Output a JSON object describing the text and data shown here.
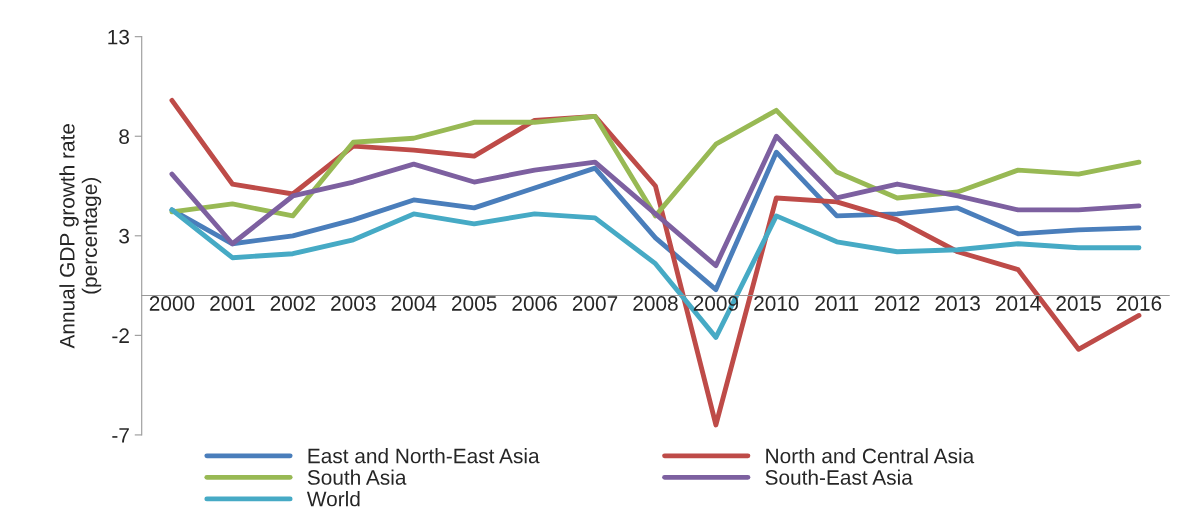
{
  "chart_data": {
    "type": "line",
    "ylabel": "Annual GDP growth rate\n(percentage)",
    "categories": [
      "2000",
      "2001",
      "2002",
      "2003",
      "2004",
      "2005",
      "2006",
      "2007",
      "2008",
      "2009",
      "2010",
      "2011",
      "2012",
      "2013",
      "2014",
      "2015",
      "2016"
    ],
    "series": [
      {
        "name": "East and North-East Asia",
        "color": "#4a7ebb",
        "values": [
          4.3,
          2.6,
          3.0,
          3.8,
          4.8,
          4.4,
          5.4,
          6.4,
          2.9,
          0.3,
          7.2,
          4.0,
          4.1,
          4.4,
          3.1,
          3.3,
          3.4
        ]
      },
      {
        "name": "North and Central Asia",
        "color": "#be4b48",
        "values": [
          9.8,
          5.6,
          5.1,
          7.5,
          7.3,
          7.0,
          8.8,
          9.0,
          5.5,
          -6.5,
          4.9,
          4.7,
          3.8,
          2.2,
          1.3,
          -2.7,
          -1.0
        ]
      },
      {
        "name": "South Asia",
        "color": "#98b954",
        "values": [
          4.2,
          4.6,
          4.0,
          7.7,
          7.9,
          8.7,
          8.7,
          9.0,
          4.0,
          7.6,
          9.3,
          6.2,
          4.9,
          5.2,
          6.3,
          6.1,
          6.7
        ]
      },
      {
        "name": "South-East Asia",
        "color": "#7d60a0",
        "values": [
          6.1,
          2.6,
          5.0,
          5.7,
          6.6,
          5.7,
          6.3,
          6.7,
          4.1,
          1.5,
          8.0,
          4.9,
          5.6,
          5.0,
          4.3,
          4.3,
          4.5
        ]
      },
      {
        "name": "World",
        "color": "#46aac5",
        "values": [
          4.3,
          1.9,
          2.1,
          2.8,
          4.1,
          3.6,
          4.1,
          3.9,
          1.6,
          -2.1,
          4.0,
          2.7,
          2.2,
          2.3,
          2.6,
          2.4,
          2.4
        ]
      }
    ],
    "ylim": [
      -7,
      13
    ],
    "yticks": [
      -7,
      -2,
      3,
      8,
      13
    ],
    "grid": false,
    "legend": "bottom",
    "line_style": "solid",
    "marker": "none"
  }
}
